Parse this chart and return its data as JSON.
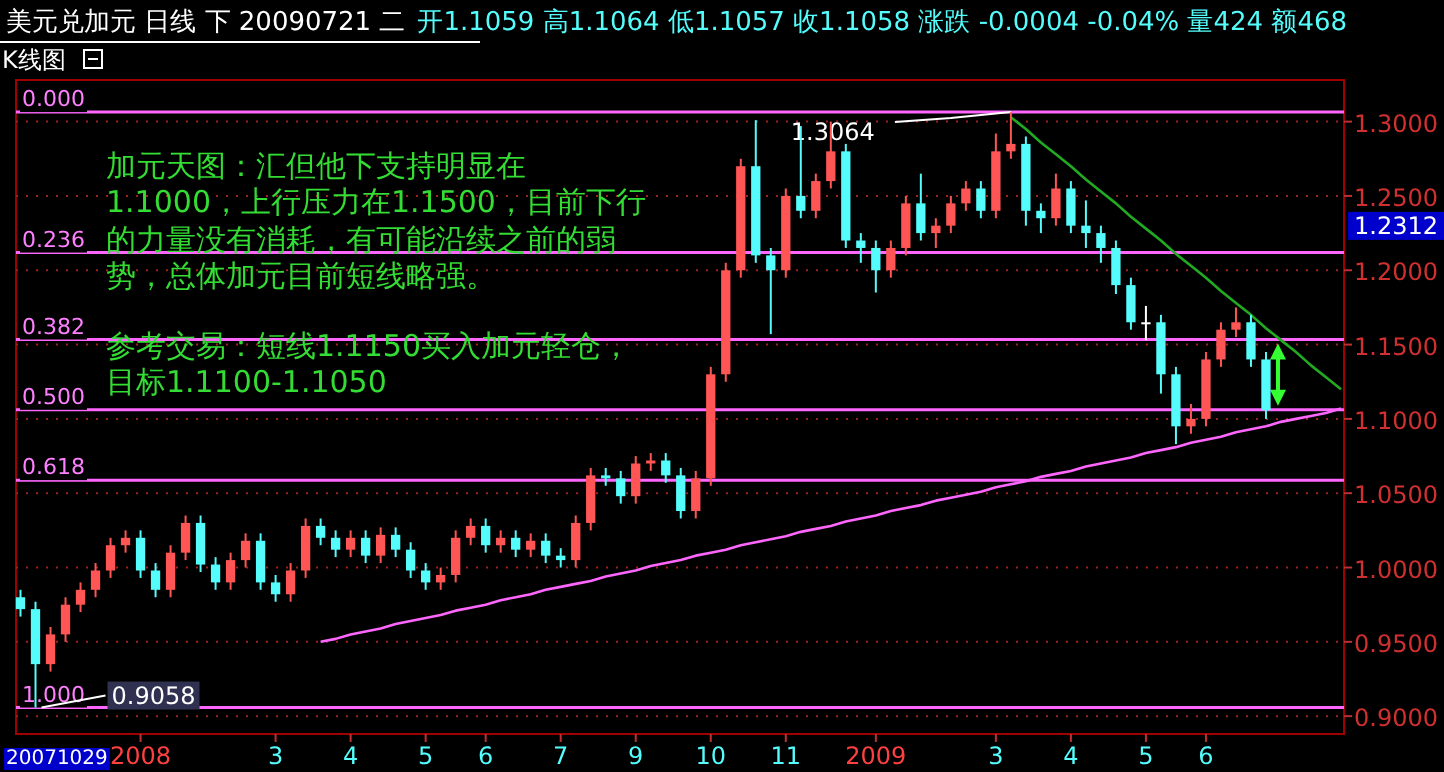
{
  "chart_data": {
    "type": "candlestick",
    "title": "美元兑加元 日线 下 20090721 二",
    "subtitle": "开1.1059 高1.1064 低1.1057 收1.1058 涨跌 -0.0004 -0.04% 量424 额468",
    "categories": [
      null,
      null,
      null,
      null,
      null,
      null,
      null,
      null,
      "2008",
      null,
      null,
      null,
      null,
      null,
      null,
      null,
      null,
      "3",
      null,
      null,
      null,
      null,
      "4",
      null,
      null,
      null,
      null,
      "5",
      null,
      null,
      null,
      "6",
      null,
      null,
      null,
      null,
      "7",
      null,
      null,
      null,
      null,
      "9",
      null,
      null,
      null,
      null,
      "10",
      null,
      null,
      null,
      null,
      "11",
      null,
      null,
      null,
      null,
      null,
      "2009",
      null,
      null,
      null,
      null,
      null,
      null,
      null,
      "3",
      null,
      null,
      null,
      null,
      "4",
      null,
      null,
      null,
      null,
      "5",
      null,
      null,
      null,
      "6",
      null,
      null,
      null,
      null,
      null,
      null,
      null,
      null,
      null
    ],
    "ohlc": [
      [
        0.98,
        0.985,
        0.967,
        0.972
      ],
      [
        0.972,
        0.977,
        0.9058,
        0.935
      ],
      [
        0.935,
        0.96,
        0.93,
        0.955
      ],
      [
        0.955,
        0.98,
        0.95,
        0.975
      ],
      [
        0.975,
        0.99,
        0.97,
        0.985
      ],
      [
        0.985,
        1.003,
        0.98,
        0.998
      ],
      [
        0.998,
        1.02,
        0.993,
        1.015
      ],
      [
        1.015,
        1.025,
        1.01,
        1.02
      ],
      [
        1.02,
        1.025,
        0.993,
        0.998
      ],
      [
        0.998,
        1.003,
        0.98,
        0.985
      ],
      [
        0.985,
        1.015,
        0.98,
        1.01
      ],
      [
        1.01,
        1.035,
        1.005,
        1.03
      ],
      [
        1.03,
        1.035,
        0.997,
        1.002
      ],
      [
        1.002,
        1.007,
        0.985,
        0.99
      ],
      [
        0.99,
        1.01,
        0.985,
        1.005
      ],
      [
        1.005,
        1.023,
        1.0,
        1.018
      ],
      [
        1.018,
        1.023,
        0.985,
        0.99
      ],
      [
        0.99,
        0.995,
        0.977,
        0.982
      ],
      [
        0.982,
        1.003,
        0.977,
        0.998
      ],
      [
        0.998,
        1.033,
        0.993,
        1.028
      ],
      [
        1.028,
        1.033,
        1.015,
        1.02
      ],
      [
        1.02,
        1.025,
        1.007,
        1.012
      ],
      [
        1.012,
        1.025,
        1.007,
        1.02
      ],
      [
        1.02,
        1.025,
        1.003,
        1.008
      ],
      [
        1.008,
        1.027,
        1.003,
        1.022
      ],
      [
        1.022,
        1.027,
        1.007,
        1.012
      ],
      [
        1.012,
        1.017,
        0.993,
        0.998
      ],
      [
        0.998,
        1.003,
        0.985,
        0.99
      ],
      [
        0.99,
        1.0,
        0.985,
        0.995
      ],
      [
        0.995,
        1.025,
        0.99,
        1.02
      ],
      [
        1.02,
        1.033,
        1.015,
        1.028
      ],
      [
        1.028,
        1.033,
        1.01,
        1.015
      ],
      [
        1.015,
        1.025,
        1.01,
        1.02
      ],
      [
        1.02,
        1.025,
        1.007,
        1.012
      ],
      [
        1.012,
        1.023,
        1.007,
        1.018
      ],
      [
        1.018,
        1.023,
        1.003,
        1.008
      ],
      [
        1.008,
        1.013,
        1.0,
        1.005
      ],
      [
        1.005,
        1.035,
        1.0,
        1.03
      ],
      [
        1.03,
        1.067,
        1.025,
        1.062
      ],
      [
        1.062,
        1.067,
        1.055,
        1.06
      ],
      [
        1.06,
        1.065,
        1.043,
        1.048
      ],
      [
        1.048,
        1.075,
        1.043,
        1.07
      ],
      [
        1.07,
        1.077,
        1.065,
        1.072
      ],
      [
        1.072,
        1.077,
        1.057,
        1.062
      ],
      [
        1.062,
        1.067,
        1.033,
        1.038
      ],
      [
        1.038,
        1.065,
        1.033,
        1.06
      ],
      [
        1.06,
        1.135,
        1.055,
        1.13
      ],
      [
        1.13,
        1.205,
        1.125,
        1.2
      ],
      [
        1.2,
        1.275,
        1.195,
        1.27
      ],
      [
        1.27,
        1.301,
        1.205,
        1.21
      ],
      [
        1.21,
        1.215,
        1.157,
        1.2
      ],
      [
        1.2,
        1.255,
        1.195,
        1.25
      ],
      [
        1.25,
        1.297,
        1.235,
        1.24
      ],
      [
        1.24,
        1.265,
        1.235,
        1.26
      ],
      [
        1.26,
        1.3,
        1.255,
        1.28
      ],
      [
        1.28,
        1.285,
        1.215,
        1.22
      ],
      [
        1.22,
        1.225,
        1.205,
        1.215
      ],
      [
        1.215,
        1.22,
        1.185,
        1.2
      ],
      [
        1.2,
        1.22,
        1.195,
        1.215
      ],
      [
        1.215,
        1.25,
        1.21,
        1.245
      ],
      [
        1.245,
        1.265,
        1.22,
        1.225
      ],
      [
        1.225,
        1.235,
        1.215,
        1.23
      ],
      [
        1.23,
        1.25,
        1.225,
        1.245
      ],
      [
        1.245,
        1.26,
        1.24,
        1.255
      ],
      [
        1.255,
        1.26,
        1.235,
        1.24
      ],
      [
        1.24,
        1.292,
        1.235,
        1.28
      ],
      [
        1.28,
        1.3064,
        1.275,
        1.285
      ],
      [
        1.285,
        1.29,
        1.23,
        1.24
      ],
      [
        1.24,
        1.245,
        1.225,
        1.235
      ],
      [
        1.235,
        1.265,
        1.23,
        1.255
      ],
      [
        1.255,
        1.26,
        1.225,
        1.23
      ],
      [
        1.23,
        1.247,
        1.215,
        1.225
      ],
      [
        1.225,
        1.23,
        1.205,
        1.215
      ],
      [
        1.215,
        1.22,
        1.184,
        1.19
      ],
      [
        1.19,
        1.195,
        1.16,
        1.165
      ],
      [
        1.165,
        1.176,
        1.153,
        1.165
      ],
      [
        1.165,
        1.17,
        1.117,
        1.13
      ],
      [
        1.13,
        1.135,
        1.083,
        1.095
      ],
      [
        1.095,
        1.11,
        1.09,
        1.1
      ],
      [
        1.1,
        1.145,
        1.095,
        1.14
      ],
      [
        1.14,
        1.165,
        1.135,
        1.16
      ],
      [
        1.16,
        1.175,
        1.155,
        1.165
      ],
      [
        1.165,
        1.17,
        1.135,
        1.14
      ],
      [
        1.14,
        1.145,
        1.1,
        1.1058
      ],
      null,
      null,
      null,
      null,
      null
    ],
    "series": [
      {
        "type": "line",
        "color": "#22aa22",
        "values": [
          null,
          null,
          null,
          null,
          null,
          null,
          null,
          null,
          null,
          null,
          null,
          null,
          null,
          null,
          null,
          null,
          null,
          null,
          null,
          null,
          null,
          null,
          null,
          null,
          null,
          null,
          null,
          null,
          null,
          null,
          null,
          null,
          null,
          null,
          null,
          null,
          null,
          null,
          null,
          null,
          null,
          null,
          null,
          null,
          null,
          null,
          null,
          null,
          null,
          null,
          null,
          null,
          null,
          null,
          null,
          null,
          null,
          null,
          null,
          null,
          null,
          null,
          null,
          null,
          null,
          null,
          1.303,
          1.295,
          1.286,
          1.278,
          1.27,
          1.261,
          1.253,
          1.245,
          1.236,
          1.228,
          1.22,
          1.211,
          1.203,
          1.195,
          1.186,
          1.178,
          1.17,
          1.161,
          1.153,
          1.145,
          1.136,
          1.128,
          1.12
        ]
      },
      {
        "type": "line",
        "color": "#ff66ff",
        "values": [
          null,
          null,
          null,
          null,
          null,
          null,
          null,
          null,
          null,
          null,
          null,
          null,
          null,
          null,
          null,
          null,
          null,
          null,
          null,
          null,
          0.95,
          0.952,
          0.955,
          0.957,
          0.959,
          0.962,
          0.964,
          0.966,
          0.968,
          0.971,
          0.973,
          0.975,
          0.978,
          0.98,
          0.982,
          0.985,
          0.987,
          0.989,
          0.991,
          0.994,
          0.996,
          0.998,
          1.001,
          1.003,
          1.005,
          1.008,
          1.01,
          1.012,
          1.015,
          1.017,
          1.019,
          1.021,
          1.024,
          1.026,
          1.028,
          1.031,
          1.033,
          1.035,
          1.038,
          1.04,
          1.042,
          1.045,
          1.047,
          1.049,
          1.051,
          1.054,
          1.056,
          1.058,
          1.061,
          1.063,
          1.065,
          1.068,
          1.07,
          1.072,
          1.074,
          1.077,
          1.079,
          1.081,
          1.084,
          1.086,
          1.088,
          1.091,
          1.093,
          1.095,
          1.098,
          1.1,
          1.102,
          1.104,
          1.107
        ]
      }
    ],
    "ylim": [
      0.888,
      1.328
    ],
    "yticks": [
      {
        "value": 0.9,
        "label": "0.9000"
      },
      {
        "value": 0.95,
        "label": "0.9500"
      },
      {
        "value": 1.0,
        "label": "1.0000"
      },
      {
        "value": 1.05,
        "label": "1.0500"
      },
      {
        "value": 1.1,
        "label": "1.1000"
      },
      {
        "value": 1.15,
        "label": "1.1500"
      },
      {
        "value": 1.2,
        "label": "1.2000"
      },
      {
        "value": 1.25,
        "label": "1.2500"
      },
      {
        "value": 1.3,
        "label": "1.3000"
      }
    ],
    "grid": "y",
    "ref_lines": [
      {
        "axis": "y",
        "value": 1.3064,
        "color": "#ff66ff"
      },
      {
        "axis": "y",
        "value": 1.2119,
        "color": "#ff66ff"
      },
      {
        "axis": "y",
        "value": 1.1534,
        "color": "#ff66ff"
      },
      {
        "axis": "y",
        "value": 1.1061,
        "color": "#ff66ff"
      },
      {
        "axis": "y",
        "value": 1.0588,
        "color": "#ff66ff"
      },
      {
        "axis": "y",
        "value": 0.9058,
        "color": "#ff66ff"
      }
    ],
    "annotations": [
      "K线图",
      "加元天图：汇但他下支持明显在1.1000，上行压力在1.1500，目前下行的力量没有消耗，有可能沿续之前的弱势，总体加元目前短线略强。",
      "参考交易：短线1.1150买入加元轻仓，目标1.1100-1.1050",
      "20071029",
      "1.2312",
      "0.000",
      "0.236",
      "0.382",
      "0.500",
      "0.618",
      "1.000",
      {
        "text": "1.3064",
        "y": 1.3064
      },
      {
        "text": "0.9058",
        "y": 0.9058
      }
    ]
  }
}
